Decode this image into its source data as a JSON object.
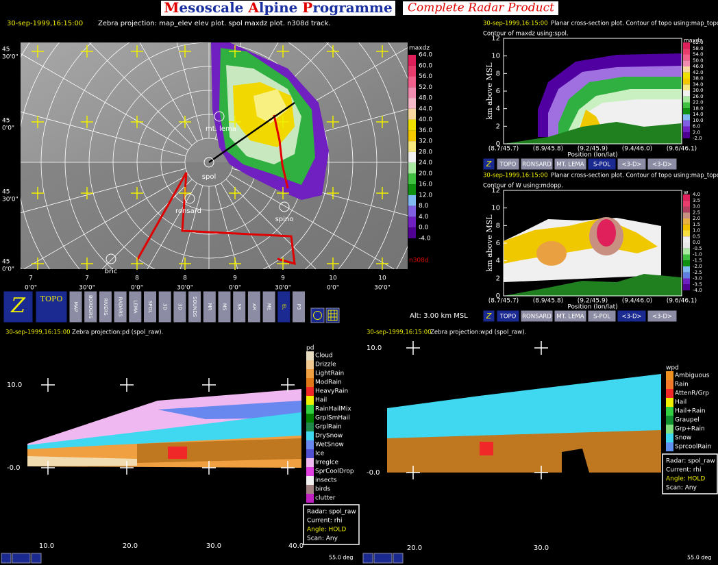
{
  "header": {
    "title": "Mesoscale Alpine Programme",
    "subtitle": "Complete Radar Product"
  },
  "map": {
    "time": "30-sep-1999,16:15:00",
    "info": "Zebra projection: map_elev elev plot. spol maxdz plot. n308d track.",
    "colorbar": {
      "title": "maxdz",
      "labels": [
        "64.0",
        "60.0",
        "56.0",
        "52.0",
        "48.0",
        "44.0",
        "40.0",
        "36.0",
        "32.0",
        "28.0",
        "24.0",
        "20.0",
        "16.0",
        "12.0",
        "8.0",
        "4.0",
        "0.0",
        "-4.0"
      ],
      "colors": [
        "#e0205a",
        "#e83c6c",
        "#f0608a",
        "#f08cb0",
        "#f4b8c8",
        "#f8d8a0",
        "#f0e000",
        "#f4c800",
        "#f8e880",
        "#f0f0f0",
        "#a8e8a0",
        "#40c040",
        "#109010",
        "#80b8f0",
        "#8060e0",
        "#7020c0",
        "#500090"
      ]
    },
    "track_label": "n308d",
    "lat_labels": [
      {
        "deg": "45",
        "min": "30'0\""
      },
      {
        "deg": "45",
        "min": "0'0\""
      },
      {
        "deg": "45",
        "min": "30'0\""
      },
      {
        "deg": "45",
        "min": "0'0\""
      }
    ],
    "lon_labels": [
      {
        "deg": "7",
        "min": "0'0\""
      },
      {
        "deg": "7",
        "min": "30'0\""
      },
      {
        "deg": "8",
        "min": "0'0\""
      },
      {
        "deg": "8",
        "min": "30'0\""
      },
      {
        "deg": "9",
        "min": "0'0\""
      },
      {
        "deg": "9",
        "min": "30'0\""
      },
      {
        "deg": "10",
        "min": "0'0\""
      },
      {
        "deg": "10",
        "min": "30'0\""
      }
    ],
    "sites": [
      "mt. lema",
      "spol",
      "ronsard",
      "spino",
      "bric"
    ],
    "altitude": "Alt: 3.00 km MSL"
  },
  "toolbar": {
    "buttons": [
      "Z",
      "TOPO",
      "MAP",
      "BORDERS",
      "RIVERS",
      "RADARS",
      "LEMA",
      "SPOL",
      "3D",
      "3D",
      "SOUNDS",
      "MR",
      "MS",
      "SR",
      "AR",
      "ME",
      "EL",
      "P3"
    ]
  },
  "cross_sections": [
    {
      "time": "30-sep-1999,16:15:00",
      "info": "Planar cross-section plot. Contour of topo using:map_topo.",
      "info2": "Contour of maxdz using:spol.",
      "y_label": "km above MSL",
      "y_ticks": [
        "12",
        "10",
        "8",
        "6",
        "4",
        "2",
        "0"
      ],
      "x_label": "Position (lon/lat)",
      "x_ticks": [
        "(8.7/45.7)",
        "(8.9/45.8)",
        "(9.2/45.9)",
        "(9.4/46.0)",
        "(9.6/46.1)"
      ],
      "colorbar": {
        "title": "maxdz",
        "labels": [
          "62.0",
          "58.0",
          "54.0",
          "50.0",
          "46.0",
          "42.0",
          "38.0",
          "34.0",
          "30.0",
          "26.0",
          "22.0",
          "18.0",
          "14.0",
          "10.0",
          "6.0",
          "2.0",
          "-2.0"
        ],
        "colors": [
          "#e0205a",
          "#e83c6c",
          "#f0608a",
          "#f08cb0",
          "#f8d8a0",
          "#f0e000",
          "#f4c800",
          "#f8e880",
          "#f0f0f0",
          "#a8e8a0",
          "#40c040",
          "#109010",
          "#80b8f0",
          "#8060e0",
          "#7020c0",
          "#500090"
        ]
      },
      "buttons": [
        "Z",
        "TOPO",
        "RONSARD",
        "MT. LEMA",
        "S-POL",
        "<3-D>",
        "<3-D>"
      ]
    },
    {
      "time": "30-sep-1999,16:15:00",
      "info": "Planar cross-section plot. Contour of topo using:map_topo.",
      "info2": "Contour of W using:mdopp.",
      "y_label": "km above MSL",
      "y_ticks": [
        "12",
        "10",
        "8",
        "6",
        "4",
        "2",
        "0"
      ],
      "x_label": "Position (lon/lat)",
      "x_ticks": [
        "(8.7/45.7)",
        "(8.9/45.8)",
        "(9.2/45.9)",
        "(9.4/46.0)",
        "(9.6/46.1)"
      ],
      "colorbar": {
        "title": "w",
        "labels": [
          "4.0",
          "3.5",
          "3.0",
          "2.5",
          "2.0",
          "1.5",
          "1.0",
          "0.5",
          "0.0",
          "-0.5",
          "-1.0",
          "-1.5",
          "-2.0",
          "-2.5",
          "-3.0",
          "-3.5",
          "-4.0"
        ],
        "colors": [
          "#e0205a",
          "#e83c6c",
          "#b04060",
          "#c89080",
          "#e8b040",
          "#f0c000",
          "#f8e040",
          "#f0f0f0",
          "#e8e8e8",
          "#a8e8a0",
          "#40c040",
          "#109010",
          "#80b8f0",
          "#6080e0",
          "#7020c0",
          "#500090"
        ]
      },
      "buttons": [
        "Z",
        "TOPO",
        "RONSARD",
        "MT. LEMA",
        "S-POL",
        "<3-D>",
        "<3-D>"
      ]
    }
  ],
  "rhi_panels": [
    {
      "time": "30-sep-1999,16:15:00",
      "info": "Zebra projection:pd (spol_raw).",
      "legend_title": "pd",
      "legend": [
        "Cloud",
        "Drizzle",
        "LightRain",
        "ModRain",
        "HeavyRain",
        "Hail",
        "RainHailMix",
        "GrplSmHail",
        "GrplRain",
        "DrySnow",
        "WetSnow",
        "Ice",
        "IrregIce",
        "SprCoolDrop",
        "insects",
        "birds",
        "clutter"
      ],
      "legend_colors": [
        "#e8dcc0",
        "#f0c890",
        "#f0a040",
        "#e07818",
        "#f02828",
        "#f0f000",
        "#30d040",
        "#008000",
        "#208848",
        "#40d8f0",
        "#6888f0",
        "#5050d0",
        "#f0b8f0",
        "#e040e0",
        "#f0f0f0",
        "#a08080",
        "#c020c0"
      ],
      "y_ticks": [
        "10.0",
        "-0.0"
      ],
      "x_ticks": [
        "10.0",
        "20.0",
        "30.0",
        "40.0"
      ],
      "status": [
        "Radar: spol_raw",
        "Current: rhi",
        "Angle: HOLD",
        "Scan: Any"
      ],
      "angle": "55.0 deg"
    },
    {
      "time": "30-sep-1999,16:15:00",
      "info": "Zebra projection:wpd (spol_raw).",
      "legend_title": "wpd",
      "legend": [
        "Ambiguous",
        "Rain",
        "AttenR/Grp",
        "Hail",
        "Hail+Rain",
        "Graupel",
        "Grp+Rain",
        "Snow",
        "SprcoolRain"
      ],
      "legend_colors": [
        "#f09020",
        "#f07828",
        "#f02828",
        "#f0f000",
        "#30d040",
        "#109030",
        "#80e080",
        "#40d8f0",
        "#6090f0"
      ],
      "y_ticks": [
        "10.0",
        "-0.0"
      ],
      "x_ticks": [
        "20.0",
        "30.0"
      ],
      "status": [
        "Radar: spol_raw",
        "Current: rhi",
        "Angle: HOLD",
        "Scan: Any"
      ],
      "angle": "55.0 deg"
    }
  ]
}
